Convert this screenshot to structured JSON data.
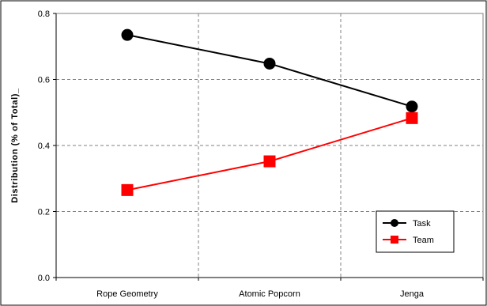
{
  "chart_data": {
    "type": "line",
    "categories": [
      "Rope Geometry",
      "Atomic Popcorn",
      "Jenga"
    ],
    "series": [
      {
        "name": "Task",
        "values": [
          0.735,
          0.648,
          0.518
        ],
        "color": "#000000",
        "marker": "circle"
      },
      {
        "name": "Team",
        "values": [
          0.265,
          0.352,
          0.483
        ],
        "color": "#ff0000",
        "marker": "square"
      }
    ],
    "title": "",
    "xlabel": "",
    "ylabel": "Distribution (% of Total)_",
    "ylim": [
      0.0,
      0.8
    ],
    "yticks": [
      0.0,
      0.2,
      0.4,
      0.6,
      0.8
    ],
    "ytick_labels": [
      "0.0",
      "0.2",
      "0.4",
      "0.6",
      "0.8"
    ],
    "grid": true,
    "legend_position": "bottom-right"
  }
}
